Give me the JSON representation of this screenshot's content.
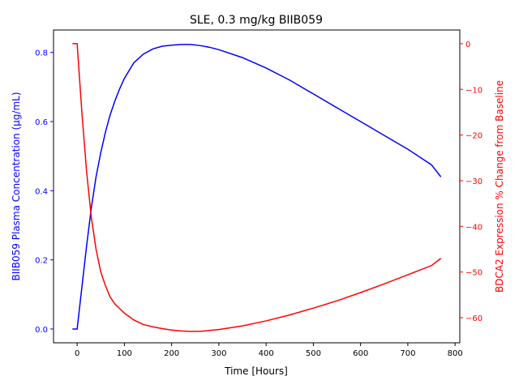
{
  "chart_data": {
    "type": "line",
    "title": "SLE, 0.3 mg/kg BIIB059",
    "xlabel": "Time [Hours]",
    "ylabel_left": "BIIB059 Plasma Concentration (μg/mL)",
    "ylabel_right": "BDCA2 Expression % Change from Baseline",
    "xlim": [
      -50,
      810
    ],
    "ylim_left": [
      -0.04,
      0.865
    ],
    "ylim_right": [
      -65.5,
      3.0
    ],
    "xticks": [
      0,
      100,
      200,
      300,
      400,
      500,
      600,
      700,
      800
    ],
    "yticks_left": [
      0.0,
      0.2,
      0.4,
      0.6,
      0.8
    ],
    "yticks_right": [
      0,
      -10,
      -20,
      -30,
      -40,
      -50,
      -60
    ],
    "ytick_labels_left": [
      "0.0",
      "0.2",
      "0.4",
      "0.6",
      "0.8"
    ],
    "ytick_labels_right": [
      "0",
      "−10",
      "−20",
      "−30",
      "−40",
      "−50",
      "−60"
    ],
    "grid": false,
    "colors": {
      "left_axis": "#0000ff",
      "right_axis": "#ff0000",
      "spine": "#000000"
    },
    "series": [
      {
        "axis": "left",
        "color": "#0000ff",
        "points": [
          [
            -10,
            0.0
          ],
          [
            0,
            0.0
          ],
          [
            10,
            0.12
          ],
          [
            20,
            0.24
          ],
          [
            30,
            0.35
          ],
          [
            40,
            0.44
          ],
          [
            50,
            0.51
          ],
          [
            60,
            0.57
          ],
          [
            70,
            0.62
          ],
          [
            80,
            0.66
          ],
          [
            90,
            0.695
          ],
          [
            100,
            0.725
          ],
          [
            120,
            0.77
          ],
          [
            140,
            0.795
          ],
          [
            160,
            0.81
          ],
          [
            180,
            0.818
          ],
          [
            200,
            0.821
          ],
          [
            220,
            0.823
          ],
          [
            240,
            0.823
          ],
          [
            260,
            0.82
          ],
          [
            280,
            0.815
          ],
          [
            300,
            0.808
          ],
          [
            350,
            0.785
          ],
          [
            400,
            0.755
          ],
          [
            450,
            0.72
          ],
          [
            500,
            0.68
          ],
          [
            550,
            0.64
          ],
          [
            600,
            0.6
          ],
          [
            650,
            0.56
          ],
          [
            700,
            0.52
          ],
          [
            750,
            0.475
          ],
          [
            770,
            0.44
          ]
        ]
      },
      {
        "axis": "right",
        "color": "#ff0000",
        "points": [
          [
            -10,
            0.0
          ],
          [
            0,
            0.0
          ],
          [
            10,
            -15
          ],
          [
            20,
            -28
          ],
          [
            30,
            -38
          ],
          [
            40,
            -45
          ],
          [
            50,
            -50
          ],
          [
            60,
            -53
          ],
          [
            70,
            -55.5
          ],
          [
            80,
            -57
          ],
          [
            90,
            -58
          ],
          [
            100,
            -59
          ],
          [
            120,
            -60.5
          ],
          [
            140,
            -61.5
          ],
          [
            160,
            -62
          ],
          [
            180,
            -62.4
          ],
          [
            200,
            -62.7
          ],
          [
            220,
            -62.9
          ],
          [
            240,
            -63.0
          ],
          [
            260,
            -63.0
          ],
          [
            280,
            -62.8
          ],
          [
            300,
            -62.6
          ],
          [
            350,
            -61.8
          ],
          [
            400,
            -60.7
          ],
          [
            450,
            -59.4
          ],
          [
            500,
            -57.9
          ],
          [
            550,
            -56.3
          ],
          [
            600,
            -54.5
          ],
          [
            650,
            -52.6
          ],
          [
            700,
            -50.6
          ],
          [
            750,
            -48.6
          ],
          [
            770,
            -47.0
          ]
        ]
      }
    ]
  }
}
